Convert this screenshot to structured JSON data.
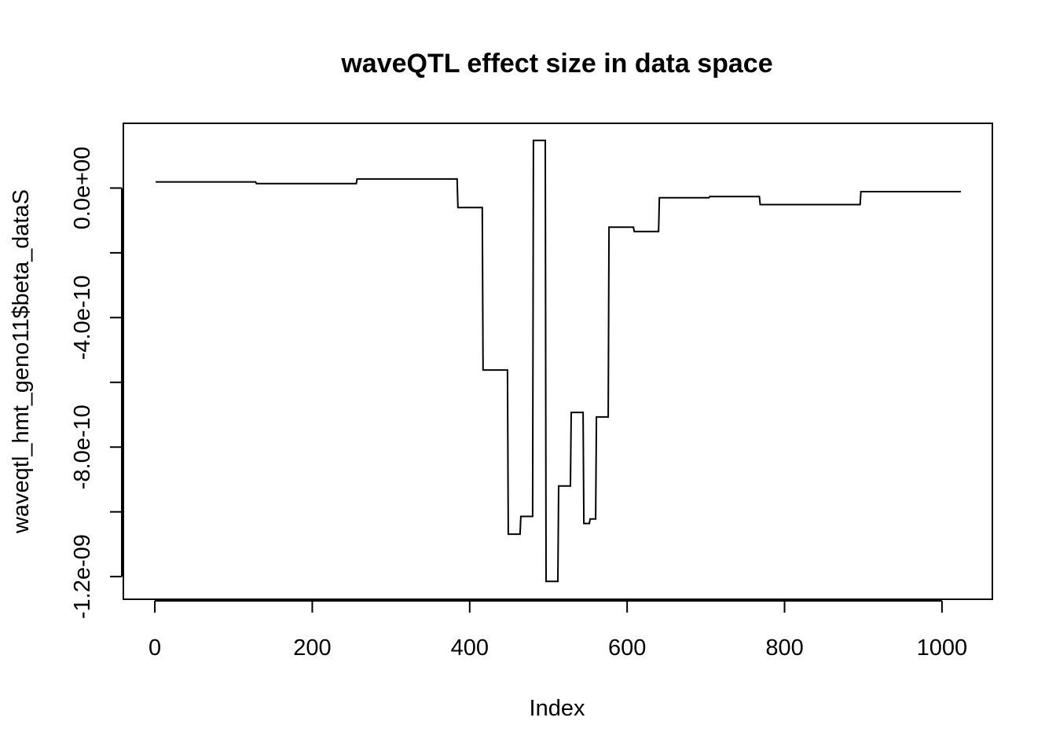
{
  "chart_data": {
    "type": "line",
    "line_style": "step",
    "title": "waveQTL effect size in data space",
    "xlabel": "Index",
    "ylabel": "waveqtl_hmt_geno11$beta_dataS",
    "x_ticks": [
      0,
      200,
      400,
      600,
      800,
      1000
    ],
    "x_tick_labels": [
      "0",
      "200",
      "400",
      "600",
      "800",
      "1000"
    ],
    "y_ticks": [
      0.0,
      -2e-10,
      -4e-10,
      -6e-10,
      -8e-10,
      -1e-09,
      -1.2e-09
    ],
    "y_tick_labels": [
      "0.0e+00",
      "",
      "-4.0e-10",
      "",
      "-8.0e-10",
      "",
      "-1.2e-09"
    ],
    "xlim": [
      -40,
      1064
    ],
    "ylim": [
      -1.27e-09,
      2e-10
    ],
    "grid": false,
    "series": [
      {
        "steps": [
          {
            "x": [
              1,
              128
            ],
            "y": 1.9e-11
          },
          {
            "x": [
              129,
              256
            ],
            "y": 1.4e-11
          },
          {
            "x": [
              257,
              384
            ],
            "y": 2.8e-11
          },
          {
            "x": [
              385,
              416
            ],
            "y": -6e-11
          },
          {
            "x": [
              417,
              448
            ],
            "y": -5.62e-10
          },
          {
            "x": [
              449,
              464
            ],
            "y": -1.069e-09
          },
          {
            "x": [
              465,
              480
            ],
            "y": -1.014e-09
          },
          {
            "x": [
              481,
              496
            ],
            "y": 1.47e-10
          },
          {
            "x": [
              497,
              512
            ],
            "y": -1.215e-09
          },
          {
            "x": [
              513,
              528
            ],
            "y": -9.2e-10
          },
          {
            "x": [
              529,
              544
            ],
            "y": -6.93e-10
          },
          {
            "x": [
              545,
              552
            ],
            "y": -1.036e-09
          },
          {
            "x": [
              553,
              560
            ],
            "y": -1.022e-09
          },
          {
            "x": [
              561,
              576
            ],
            "y": -7.07e-10
          },
          {
            "x": [
              577,
              608
            ],
            "y": -1.21e-10
          },
          {
            "x": [
              609,
              640
            ],
            "y": -1.34e-10
          },
          {
            "x": [
              641,
              704
            ],
            "y": -3e-11
          },
          {
            "x": [
              705,
              768
            ],
            "y": -2.6e-11
          },
          {
            "x": [
              769,
              896
            ],
            "y": -5.1e-11
          },
          {
            "x": [
              897,
              1024
            ],
            "y": -1.1e-11
          }
        ]
      }
    ]
  }
}
